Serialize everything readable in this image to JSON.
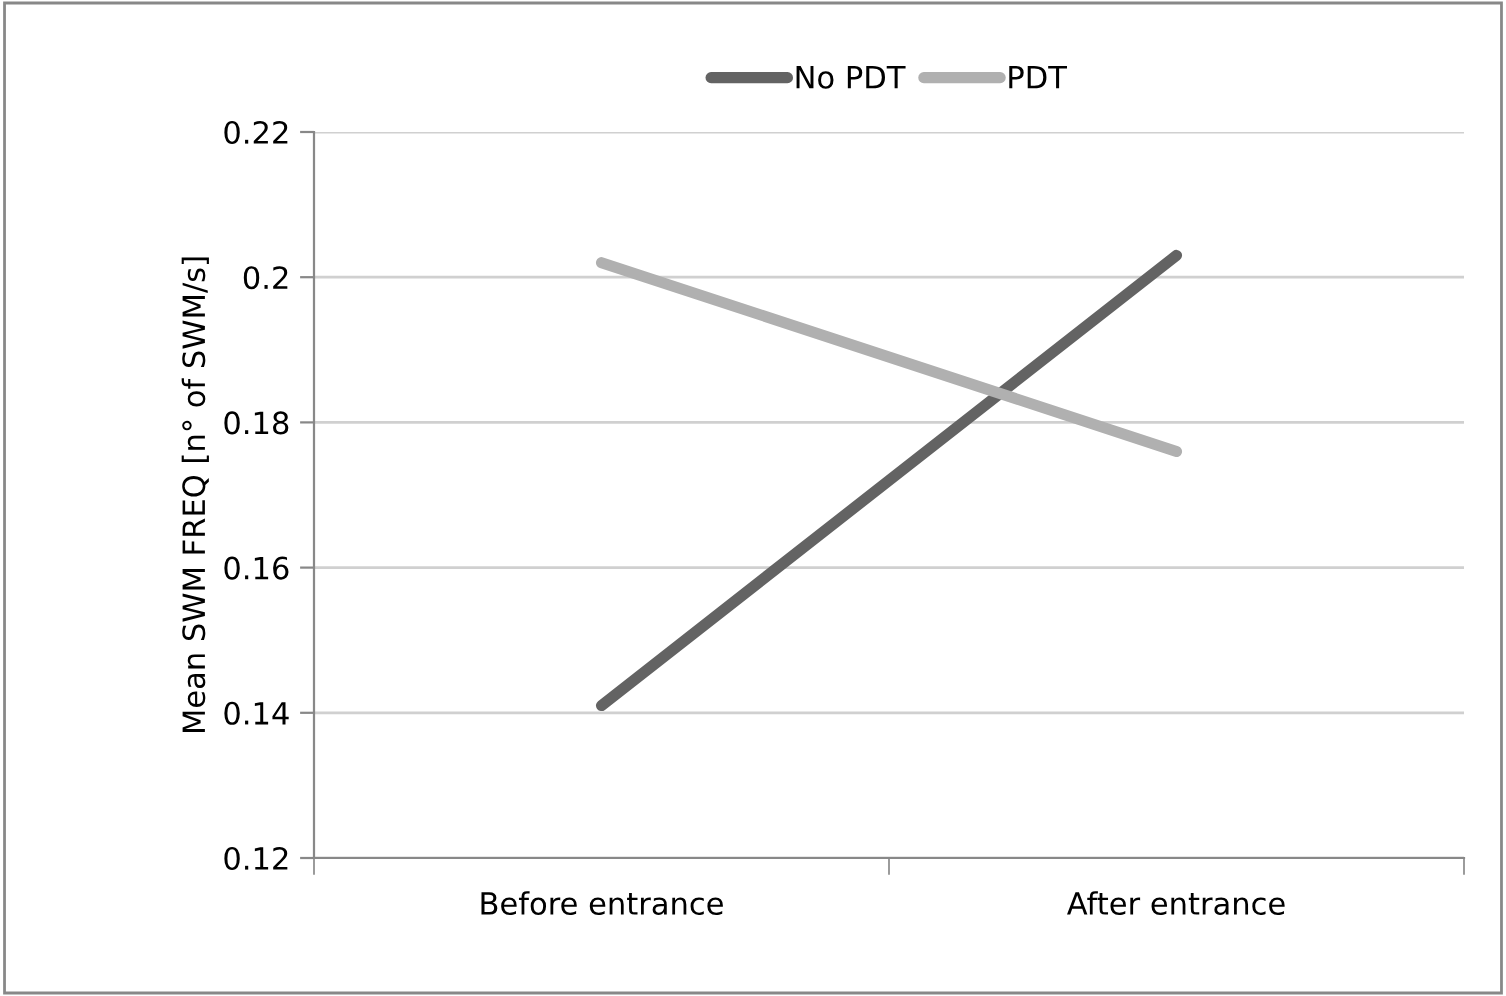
{
  "chart_data": {
    "type": "line",
    "ylabel": "Mean SWM FREQ [n° of SWM/s]",
    "categories": [
      "Before entrance",
      "After entrance"
    ],
    "series": [
      {
        "name": "No PDT",
        "color": "#636363",
        "values": [
          0.141,
          0.203
        ]
      },
      {
        "name": "PDT",
        "color": "#b0b0b0",
        "values": [
          0.202,
          0.176
        ]
      }
    ],
    "ylim": [
      0.12,
      0.22
    ],
    "yticks": [
      0.12,
      0.14,
      0.16,
      0.18,
      {
        "value": 0.2,
        "label": "0.2"
      },
      0.22
    ],
    "grid": "y",
    "legend": "top",
    "marker": "none",
    "line_style": "solid"
  }
}
